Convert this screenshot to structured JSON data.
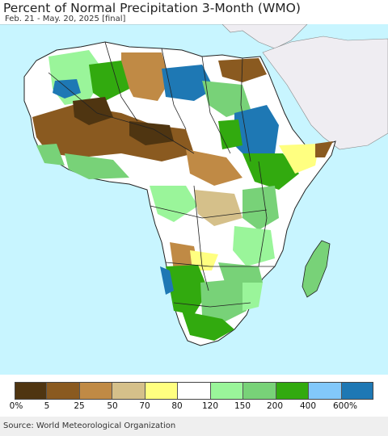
{
  "header": {
    "title": "Percent of Normal Precipitation 3-Month (WMO)",
    "subtitle": "Feb. 21 - May. 20, 2025 [final]"
  },
  "legend": {
    "labels": [
      "0%",
      "5",
      "25",
      "50",
      "70",
      "80",
      "120",
      "150",
      "200",
      "400",
      "600%"
    ],
    "colors": [
      "#4f3511",
      "#8a5a20",
      "#c08a45",
      "#d5c08a",
      "#ffff80",
      "#ffffff",
      "#9af59a",
      "#78d278",
      "#32aa0f",
      "#82c8fa",
      "#1e78b4"
    ]
  },
  "colors": {
    "ocean": "#c8f5ff",
    "land_no_data": "#efedf2",
    "border": "#222222"
  },
  "footer": {
    "source": "Source: World Meteorological Organization"
  }
}
